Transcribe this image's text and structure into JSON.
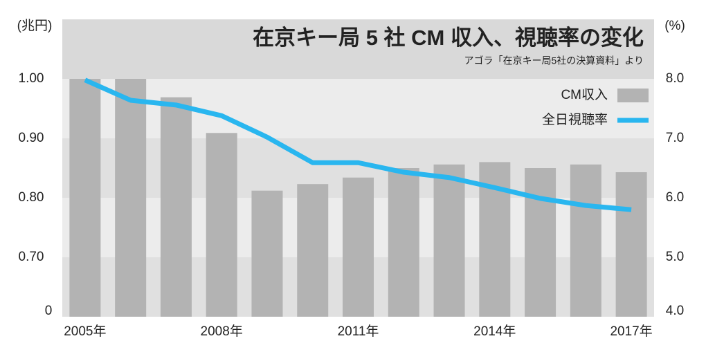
{
  "chart_data": {
    "type": "bar-line",
    "title": "在京キー局 5 社 CM 収入、視聴率の変化",
    "subtitle": "アゴラ「在京キー局5社の決算資料」より",
    "y_label": "(兆円)",
    "y2_label": "(%)",
    "y_break_label": "0",
    "categories": [
      "2005年",
      null,
      null,
      "2008年",
      null,
      null,
      "2011年",
      null,
      null,
      "2014年",
      null,
      null,
      "2017年"
    ],
    "series": [
      {
        "name": "CM収入",
        "type": "bar",
        "color": "#b3b3b3",
        "values": [
          1.0,
          1.0,
          0.969,
          0.909,
          0.812,
          0.823,
          0.834,
          0.85,
          0.856,
          0.86,
          0.85,
          0.856,
          0.843
        ]
      },
      {
        "name": "全日視聴率",
        "type": "line",
        "axis": "y2",
        "color": "#29b6ef",
        "values": [
          7.98,
          7.64,
          7.56,
          7.38,
          7.02,
          6.59,
          6.59,
          6.43,
          6.34,
          6.17,
          5.99,
          5.87,
          5.8
        ]
      }
    ],
    "ylim": [
      0.6,
      1.1
    ],
    "yticks": [
      {
        "value": 0.7,
        "label": "0.70"
      },
      {
        "value": 0.8,
        "label": "0.80"
      },
      {
        "value": 0.9,
        "label": "0.90"
      },
      {
        "value": 1.0,
        "label": "1.00"
      }
    ],
    "y2lim": [
      4.0,
      9.0
    ],
    "y2ticks": [
      {
        "value": 4,
        "label": "4.0"
      },
      {
        "value": 5,
        "label": "5.0"
      },
      {
        "value": 6,
        "label": "6.0"
      },
      {
        "value": 7,
        "label": "7.0"
      },
      {
        "value": 8,
        "label": "8.0"
      }
    ],
    "legend": "top-right"
  }
}
